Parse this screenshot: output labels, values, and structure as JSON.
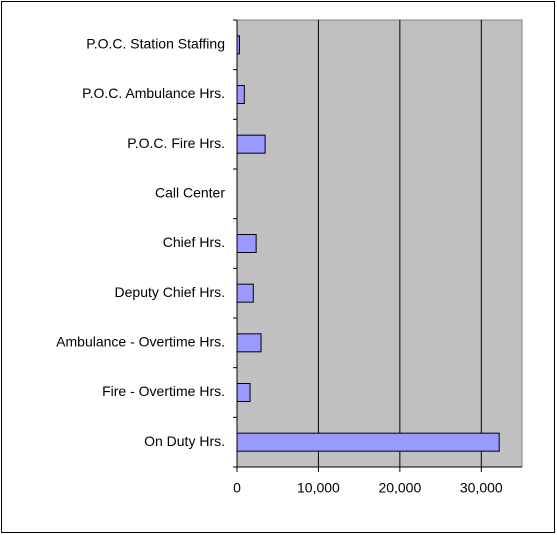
{
  "chart_data": {
    "type": "bar",
    "orientation": "horizontal",
    "categories": [
      "P.O.C. Station Staffing",
      "P.O.C. Ambulance Hrs.",
      "P.O.C. Fire Hrs.",
      "Call Center",
      "Chief Hrs.",
      "Deputy Chief Hrs.",
      "Ambulance - Overtime Hrs.",
      "Fire - Overtime Hrs.",
      "On Duty Hrs."
    ],
    "values": [
      300,
      900,
      3450,
      0,
      2350,
      2000,
      2950,
      1600,
      32200
    ],
    "color": "#9999ff",
    "xlim": [
      0,
      35000
    ],
    "xticks": [
      0,
      {
        "value": 10000,
        "label": "10,000"
      },
      {
        "value": 20000,
        "label": "20,000"
      },
      {
        "value": 30000,
        "label": "30,000"
      }
    ],
    "grid": true
  }
}
